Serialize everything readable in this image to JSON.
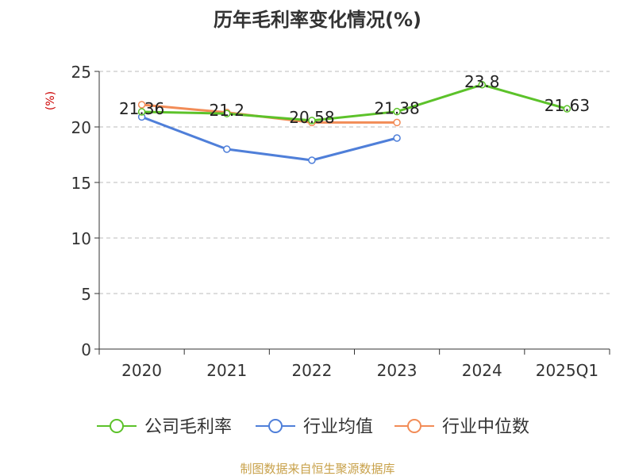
{
  "chart_data": {
    "type": "line",
    "title": "历年毛利率变化情况(%)",
    "ylabel": "(%)",
    "xlabel": "",
    "categories": [
      "2020",
      "2021",
      "2022",
      "2023",
      "2024",
      "2025Q1"
    ],
    "ylim": [
      0,
      25
    ],
    "yticks": [
      0,
      5,
      10,
      15,
      20,
      25
    ],
    "grid": true,
    "legend_position": "bottom",
    "series": [
      {
        "name": "公司毛利率",
        "color": "#5cc22a",
        "values": [
          21.36,
          21.2,
          20.58,
          21.38,
          23.8,
          21.63
        ],
        "labels": [
          "21.36",
          "21.2",
          "20.58",
          "21.38",
          "23.8",
          "21.63"
        ]
      },
      {
        "name": "行业均值",
        "color": "#4f7fd9",
        "values": [
          20.9,
          18.0,
          17.0,
          19.0,
          null,
          null
        ]
      },
      {
        "name": "行业中位数",
        "color": "#f28c57",
        "values": [
          22.0,
          21.3,
          20.4,
          20.4,
          null,
          null
        ]
      }
    ],
    "source": "制图数据来自恒生聚源数据库",
    "colors": {
      "axis": "#333333",
      "grid": "#bbbbbb",
      "ylabel": "#cc0000",
      "source": "#c8a14a"
    }
  }
}
